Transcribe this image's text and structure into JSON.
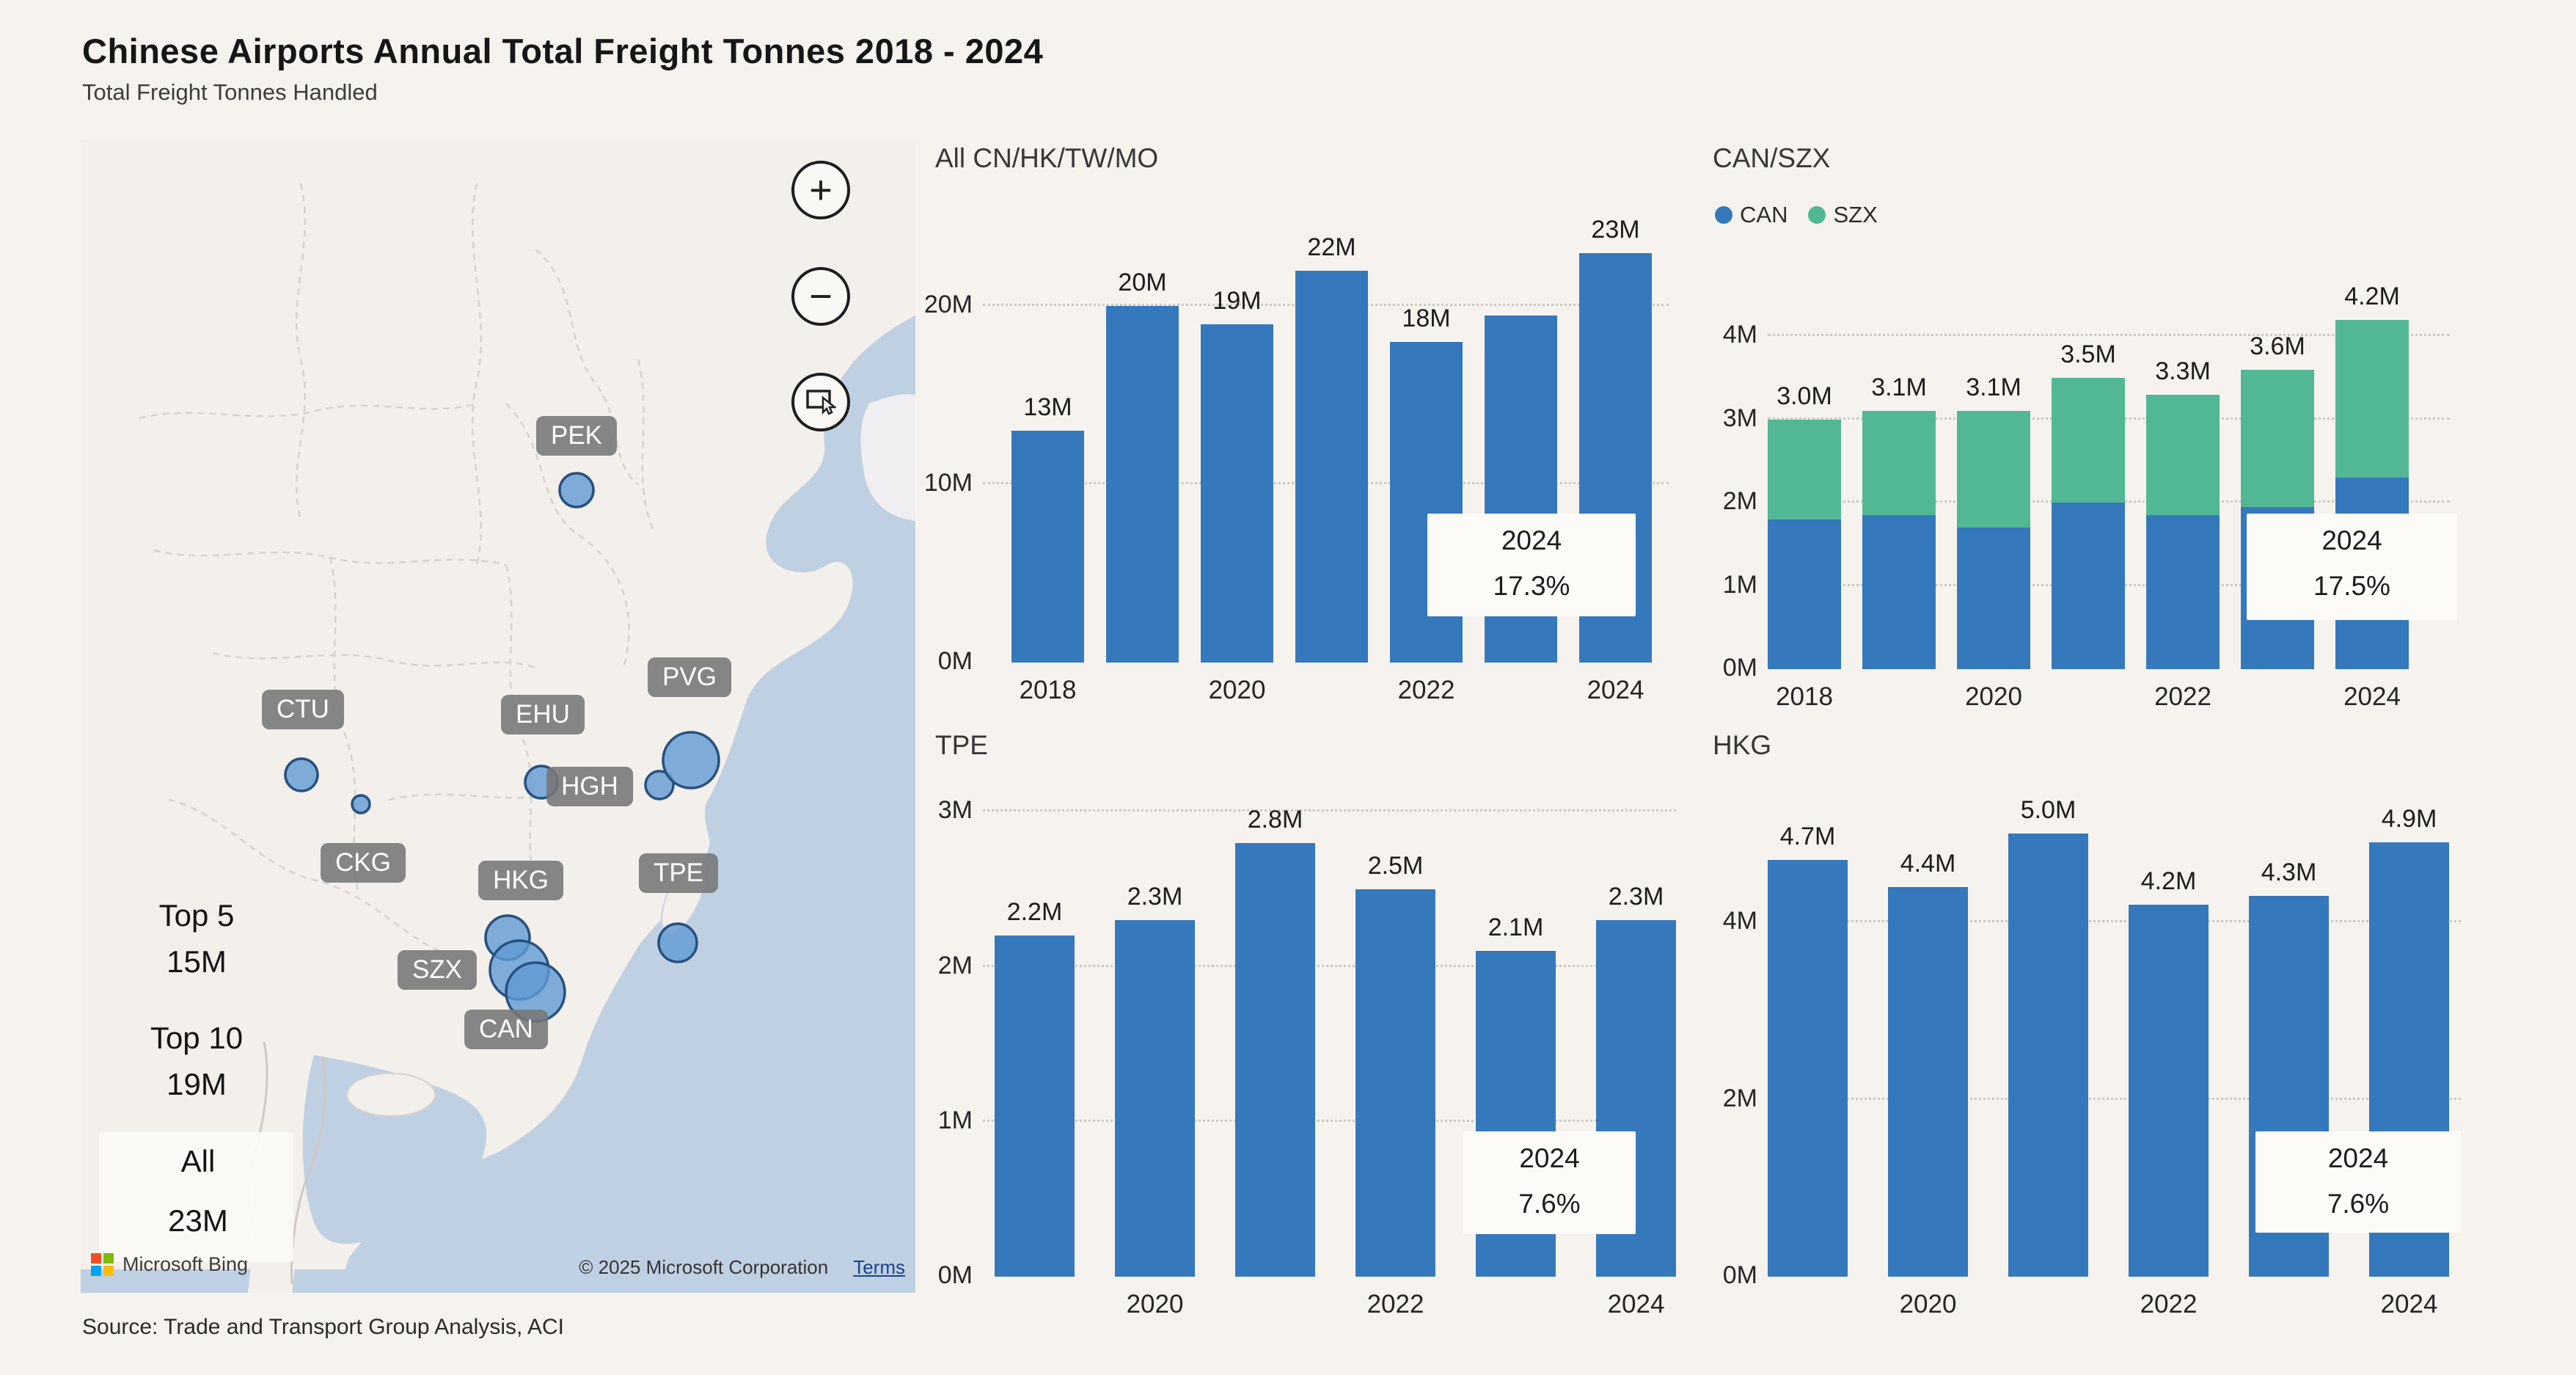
{
  "page": {
    "title": "Chinese Airports Annual Total Freight Tonnes 2018 - 2024",
    "subtitle": "Total Freight Tonnes Handled",
    "source": "Source: Trade and Transport Group Analysis, ACI"
  },
  "map": {
    "provider": "Microsoft Bing",
    "copyright": "© 2025 Microsoft Corporation",
    "terms_label": "Terms",
    "controls": {
      "zoom_in": "+",
      "zoom_out": "−"
    },
    "airport_labels": [
      "PEK",
      "CTU",
      "CKG",
      "EHU",
      "HGH",
      "PVG",
      "TPE",
      "HKG",
      "SZX",
      "CAN"
    ],
    "overlays": [
      {
        "line1": "Top 5",
        "line2": "15M"
      },
      {
        "line1": "Top 10",
        "line2": "19M"
      },
      {
        "line1": "All",
        "line2": "23M"
      }
    ],
    "colors": {
      "sea": "#bfd0e2",
      "land": "#f3efeb",
      "bubble_fill": "#609ad3",
      "bubble_stroke": "#27507f"
    }
  },
  "chart_data": [
    {
      "type": "bar",
      "title": "All CN/HK/TW/MO",
      "categories": [
        "2018",
        "2019",
        "2020",
        "2021",
        "2022",
        "2023",
        "2024"
      ],
      "values": [
        13,
        20,
        19,
        22,
        18,
        19.5,
        23
      ],
      "bar_labels": [
        "13M",
        "20M",
        "19M",
        "22M",
        "18M",
        "",
        "23M"
      ],
      "bar_color": "#3579bc",
      "ylim": [
        0,
        23.6
      ],
      "yticks": [
        {
          "v": 0,
          "label": "0M"
        },
        {
          "v": 10,
          "label": "10M"
        },
        {
          "v": 20,
          "label": "20M"
        }
      ],
      "xticks": [
        "2018",
        "2020",
        "2022",
        "2024"
      ],
      "annotation": {
        "line1": "2024",
        "line2": "17.3%"
      }
    },
    {
      "type": "stacked-bar",
      "title": "CAN/SZX",
      "categories": [
        "2018",
        "2019",
        "2020",
        "2021",
        "2022",
        "2023",
        "2024"
      ],
      "series": [
        {
          "name": "CAN",
          "color": "#3579bc",
          "values": [
            1.8,
            1.85,
            1.7,
            2.0,
            1.85,
            1.95,
            2.3
          ]
        },
        {
          "name": "SZX",
          "color": "#52b795",
          "values": [
            1.2,
            1.25,
            1.4,
            1.5,
            1.45,
            1.65,
            1.9
          ]
        }
      ],
      "totals_labels": [
        "3.0M",
        "3.1M",
        "3.1M",
        "3.5M",
        "3.3M",
        "3.6M",
        "4.2M"
      ],
      "ylim": [
        0,
        4.25
      ],
      "yticks": [
        {
          "v": 0,
          "label": "0M"
        },
        {
          "v": 1,
          "label": "1M"
        },
        {
          "v": 2,
          "label": "2M"
        },
        {
          "v": 3,
          "label": "3M"
        },
        {
          "v": 4,
          "label": "4M"
        }
      ],
      "xticks": [
        "2018",
        "2020",
        "2022",
        "2024"
      ],
      "legend_position": "top-left",
      "annotation": {
        "line1": "2024",
        "line2": "17.5%"
      }
    },
    {
      "type": "bar",
      "title": "TPE",
      "categories": [
        "2019",
        "2020",
        "2021",
        "2022",
        "2023",
        "2024"
      ],
      "values": [
        2.2,
        2.3,
        2.8,
        2.5,
        2.1,
        2.3
      ],
      "bar_labels": [
        "2.2M",
        "2.3M",
        "2.8M",
        "2.5M",
        "2.1M",
        "2.3M"
      ],
      "bar_color": "#3579bc",
      "ylim": [
        0,
        3.03
      ],
      "yticks": [
        {
          "v": 0,
          "label": "0M"
        },
        {
          "v": 1,
          "label": "1M"
        },
        {
          "v": 2,
          "label": "2M"
        },
        {
          "v": 3,
          "label": "3M"
        }
      ],
      "xticks": [
        "2020",
        "2022",
        "2024"
      ],
      "annotation": {
        "line1": "2024",
        "line2": "7.6%"
      }
    },
    {
      "type": "bar",
      "title": "HKG",
      "categories": [
        "2019",
        "2020",
        "2021",
        "2022",
        "2023",
        "2024"
      ],
      "values": [
        4.7,
        4.4,
        5.0,
        4.2,
        4.3,
        4.9
      ],
      "bar_labels": [
        "4.7M",
        "4.4M",
        "5.0M",
        "4.2M",
        "4.3M",
        "4.9M"
      ],
      "bar_color": "#3579bc",
      "ylim": [
        0,
        5.3
      ],
      "yticks": [
        {
          "v": 0,
          "label": "0M"
        },
        {
          "v": 2,
          "label": "2M"
        },
        {
          "v": 4,
          "label": "4M"
        }
      ],
      "xticks": [
        "2020",
        "2022",
        "2024"
      ],
      "annotation": {
        "line1": "2024",
        "line2": "7.6%"
      }
    }
  ]
}
